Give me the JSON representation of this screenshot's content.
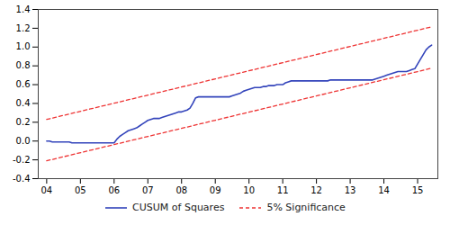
{
  "chart_data": {
    "type": "line",
    "xlim": [
      3.75,
      15.6
    ],
    "ylim": [
      -0.4,
      1.4
    ],
    "xticks": [
      {
        "value": 4,
        "label": "04"
      },
      {
        "value": 5,
        "label": "05"
      },
      {
        "value": 6,
        "label": "06"
      },
      {
        "value": 7,
        "label": "07"
      },
      {
        "value": 8,
        "label": "08"
      },
      {
        "value": 9,
        "label": "09"
      },
      {
        "value": 10,
        "label": "10"
      },
      {
        "value": 11,
        "label": "11"
      },
      {
        "value": 12,
        "label": "12"
      },
      {
        "value": 13,
        "label": "13"
      },
      {
        "value": 14,
        "label": "14"
      },
      {
        "value": 15,
        "label": "15"
      }
    ],
    "yticks": [
      -0.4,
      -0.2,
      {
        "value": 0.0,
        "label": "0.0"
      },
      0.2,
      0.4,
      0.6,
      0.8,
      {
        "value": 1.0,
        "label": "1.0"
      },
      1.2,
      1.4
    ],
    "grid": false,
    "legend": "bottom",
    "series": [
      {
        "name": "CUSUM of Squares",
        "color": "#3344bb",
        "line_style": "solid",
        "x": [
          4.0,
          4.083,
          4.167,
          4.25,
          4.333,
          4.417,
          4.5,
          4.583,
          4.667,
          4.75,
          4.833,
          4.917,
          5.0,
          5.083,
          5.167,
          5.25,
          5.333,
          5.417,
          5.5,
          5.583,
          5.667,
          5.75,
          5.833,
          5.917,
          6.0,
          6.083,
          6.167,
          6.25,
          6.333,
          6.417,
          6.5,
          6.583,
          6.667,
          6.75,
          6.833,
          6.917,
          7.0,
          7.083,
          7.167,
          7.25,
          7.333,
          7.417,
          7.5,
          7.583,
          7.667,
          7.75,
          7.833,
          7.917,
          8.0,
          8.083,
          8.167,
          8.25,
          8.333,
          8.417,
          8.5,
          8.583,
          8.667,
          8.75,
          8.833,
          8.917,
          9.0,
          9.083,
          9.167,
          9.25,
          9.333,
          9.417,
          9.5,
          9.583,
          9.667,
          9.75,
          9.833,
          9.917,
          10.0,
          10.083,
          10.167,
          10.25,
          10.333,
          10.417,
          10.5,
          10.583,
          10.667,
          10.75,
          10.833,
          10.917,
          11.0,
          11.083,
          11.167,
          11.25,
          11.333,
          11.417,
          11.5,
          11.583,
          11.667,
          11.75,
          11.833,
          11.917,
          12.0,
          12.083,
          12.167,
          12.25,
          12.333,
          12.417,
          12.5,
          12.583,
          12.667,
          12.75,
          12.833,
          12.917,
          13.0,
          13.083,
          13.167,
          13.25,
          13.333,
          13.417,
          13.5,
          13.583,
          13.667,
          13.75,
          13.833,
          13.917,
          14.0,
          14.083,
          14.167,
          14.25,
          14.333,
          14.417,
          14.5,
          14.583,
          14.667,
          14.75,
          14.833,
          14.917,
          15.0,
          15.083,
          15.167,
          15.25,
          15.333,
          15.417
        ],
        "values": [
          0.0,
          0.0,
          -0.01,
          -0.01,
          -0.01,
          -0.01,
          -0.01,
          -0.01,
          -0.01,
          -0.02,
          -0.02,
          -0.02,
          -0.02,
          -0.02,
          -0.02,
          -0.02,
          -0.02,
          -0.02,
          -0.02,
          -0.02,
          -0.02,
          -0.02,
          -0.02,
          -0.02,
          -0.02,
          0.02,
          0.05,
          0.07,
          0.09,
          0.11,
          0.12,
          0.13,
          0.14,
          0.16,
          0.18,
          0.2,
          0.22,
          0.23,
          0.24,
          0.24,
          0.24,
          0.25,
          0.26,
          0.27,
          0.28,
          0.29,
          0.3,
          0.31,
          0.31,
          0.32,
          0.33,
          0.35,
          0.4,
          0.46,
          0.47,
          0.47,
          0.47,
          0.47,
          0.47,
          0.47,
          0.47,
          0.47,
          0.47,
          0.47,
          0.47,
          0.47,
          0.48,
          0.49,
          0.5,
          0.51,
          0.53,
          0.54,
          0.55,
          0.56,
          0.57,
          0.57,
          0.57,
          0.58,
          0.58,
          0.59,
          0.59,
          0.59,
          0.6,
          0.6,
          0.6,
          0.62,
          0.63,
          0.64,
          0.64,
          0.64,
          0.64,
          0.64,
          0.64,
          0.64,
          0.64,
          0.64,
          0.64,
          0.64,
          0.64,
          0.64,
          0.64,
          0.65,
          0.65,
          0.65,
          0.65,
          0.65,
          0.65,
          0.65,
          0.65,
          0.65,
          0.65,
          0.65,
          0.65,
          0.65,
          0.65,
          0.65,
          0.65,
          0.66,
          0.67,
          0.68,
          0.69,
          0.7,
          0.71,
          0.72,
          0.73,
          0.74,
          0.74,
          0.74,
          0.74,
          0.75,
          0.76,
          0.77,
          0.82,
          0.87,
          0.92,
          0.97,
          1.0,
          1.02
        ]
      },
      {
        "name": "5% Significance",
        "color": "#ee3333",
        "line_style": "dashed",
        "x": [
          4.0,
          15.417
        ],
        "values": [
          0.23,
          1.215
        ]
      },
      {
        "name": "5% Significance",
        "color": "#ee3333",
        "line_style": "dashed",
        "x": [
          4.0,
          15.417
        ],
        "values": [
          -0.21,
          0.775
        ]
      }
    ]
  }
}
